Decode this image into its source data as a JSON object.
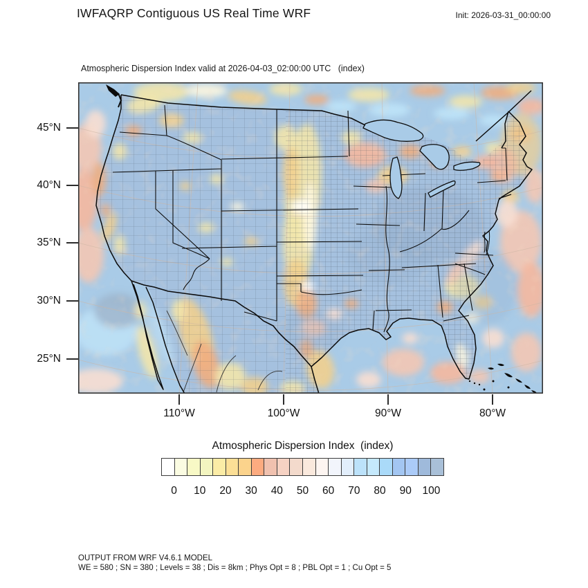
{
  "header": {
    "title": "IWFAQRP Contiguous US Real Time WRF",
    "init_label": "Init: 2026-03-31_00:00:00"
  },
  "map": {
    "subtitle": "Atmospheric Dispersion Index valid at 2026-04-03_02:00:00 UTC   (index)",
    "lat_ticks": [
      "45°N",
      "40°N",
      "35°N",
      "30°N",
      "25°N"
    ],
    "lon_ticks": [
      "110°W",
      "100°W",
      "90°W",
      "80°W"
    ]
  },
  "colorbar": {
    "title": "Atmospheric Dispersion Index  (index)",
    "tick_labels": [
      "0",
      "10",
      "20",
      "30",
      "40",
      "50",
      "60",
      "70",
      "80",
      "90",
      "100"
    ],
    "cell_colors": [
      "#ffffff",
      "#fbfce2",
      "#f8f9c6",
      "#f3f5c0",
      "#fbeca6",
      "#fcdf96",
      "#fbd38c",
      "#fcab80",
      "#f0c1af",
      "#f6d2c3",
      "#f3dacc",
      "#fae9dd",
      "#fdf5f1",
      "#f2f5fc",
      "#e2eefb",
      "#bce2fa",
      "#c5e9fc",
      "#aadaf9",
      "#a3c6f2",
      "#abcbf8",
      "#9fbadb",
      "#a9c0d8"
    ]
  },
  "footer": {
    "line1": "OUTPUT FROM WRF V4.6.1 MODEL",
    "line2": "WE = 580 ; SN = 380 ; Levels = 38 ; Dis = 8km ; Phys Opt = 8 ; PBL Opt = 1 ; Cu Opt = 5"
  },
  "theme": {
    "ocean": "#a9cbe7",
    "land": "#a5c1df",
    "yellow": "#f2e5ab",
    "gold": "#f1cf8e",
    "orange": "#f0ae80",
    "salmon": "#f5b89e",
    "pink": "#f3c6b4",
    "pale_pink": "#f8ded2",
    "cream": "#fdf6df",
    "cyan": "#bfe4f8",
    "light_blue": "#b9d9f0",
    "dark_blue": "#8ea6c2",
    "county_line": "#45525e",
    "state_line": "#0d0d0d",
    "graticule": "#cdb6a4",
    "frame": "#333333"
  }
}
